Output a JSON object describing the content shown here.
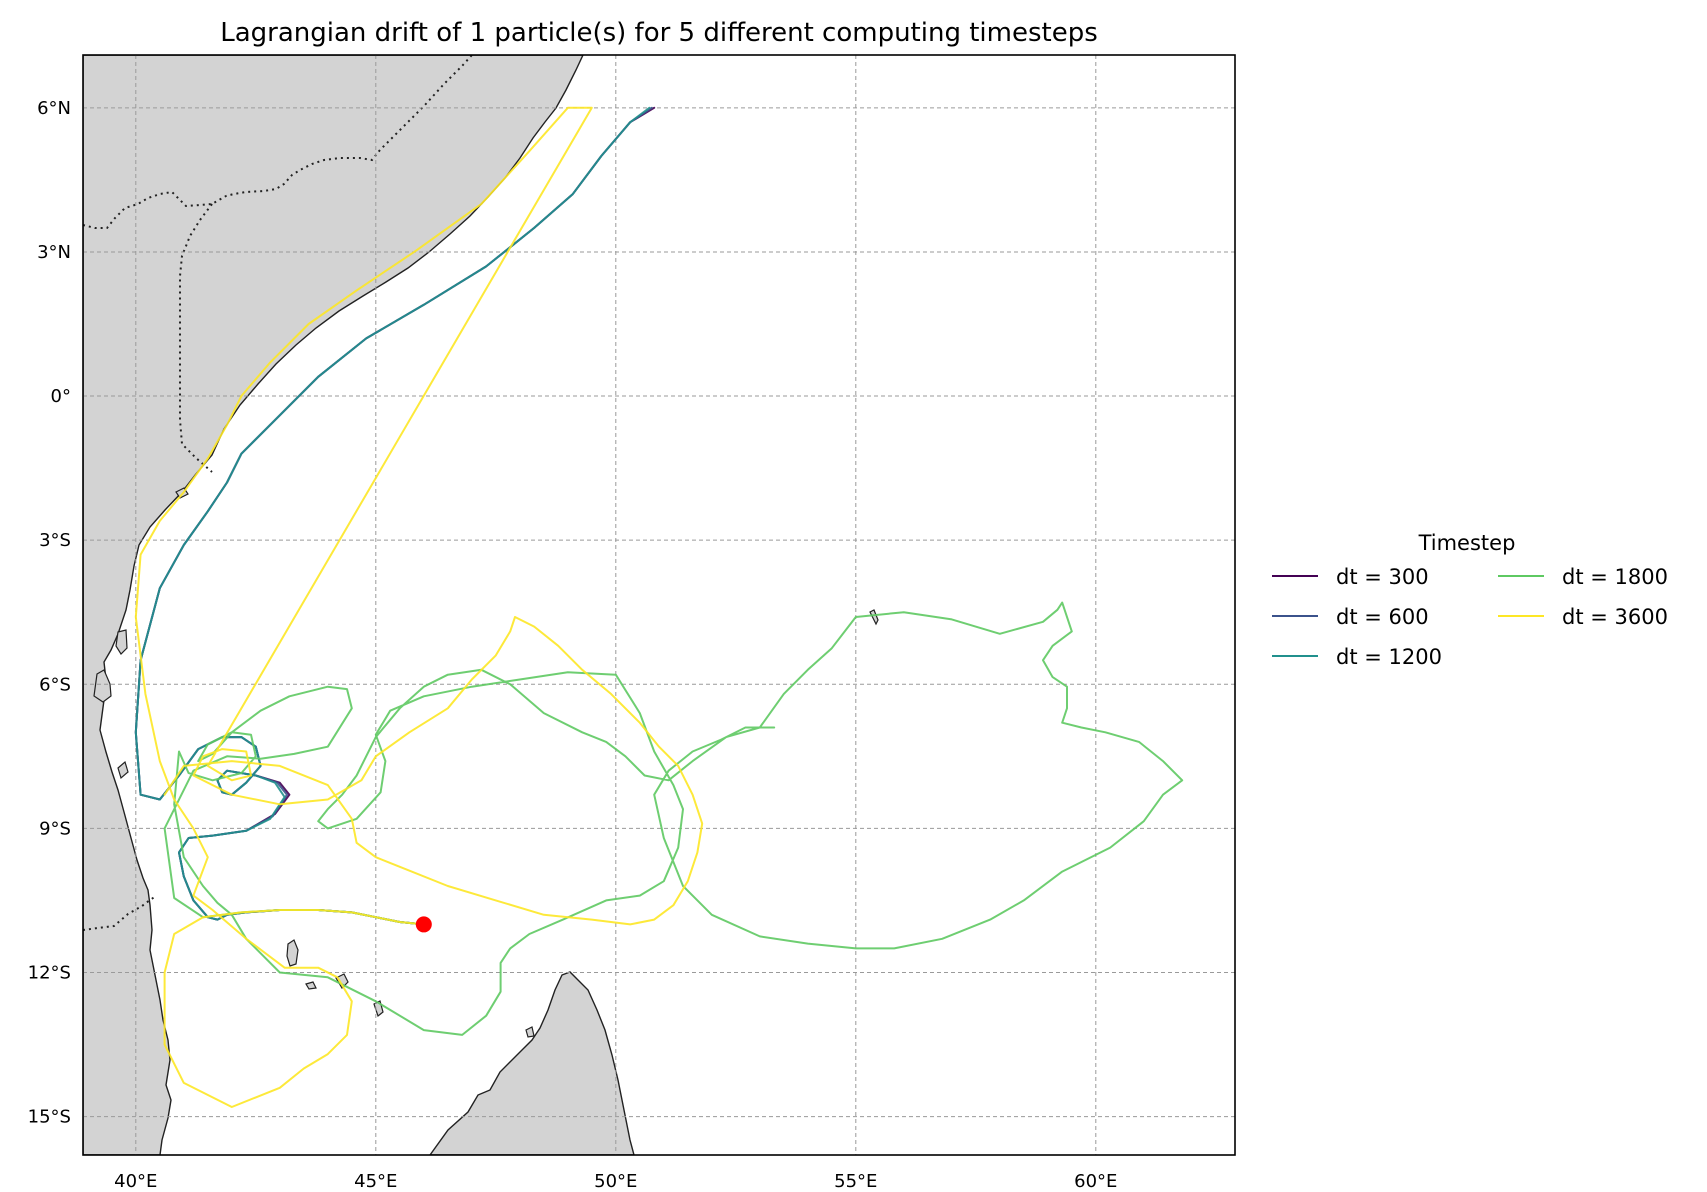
{
  "chart_data": {
    "type": "line",
    "title": "Lagrangian drift of 1 particle(s) for 5 different computing timesteps",
    "xlim": [
      38.9,
      62.9
    ],
    "ylim": [
      -15.8,
      7.1
    ],
    "x_ticks": [
      {
        "value": 40,
        "label": "40°E"
      },
      {
        "value": 45,
        "label": "45°E"
      },
      {
        "value": 50,
        "label": "50°E"
      },
      {
        "value": 55,
        "label": "55°E"
      },
      {
        "value": 60,
        "label": "60°E"
      }
    ],
    "y_ticks": [
      {
        "value": 6,
        "label": "6°N"
      },
      {
        "value": 3,
        "label": "3°N"
      },
      {
        "value": 0,
        "label": "0°"
      },
      {
        "value": -3,
        "label": "3°S"
      },
      {
        "value": -6,
        "label": "6°S"
      },
      {
        "value": -9,
        "label": "9°S"
      },
      {
        "value": -12,
        "label": "12°S"
      },
      {
        "value": -15,
        "label": "15°S"
      }
    ],
    "grid": true,
    "legend": {
      "title": "Timestep",
      "position": "right",
      "columns": 2
    },
    "release_point": {
      "lon": 46.0,
      "lat": -11.0,
      "color": "#ff0000"
    },
    "land_color": "#d3d3d3",
    "series": [
      {
        "name": "dt = 300",
        "color": "#440154",
        "lon": [
          46.0,
          45.5,
          45.0,
          44.5,
          43.8,
          43.0,
          42.3,
          41.9,
          41.7,
          41.5,
          41.2,
          41.0,
          40.9,
          41.1,
          41.6,
          42.3,
          42.9,
          43.2,
          43.0,
          42.5,
          41.9,
          41.7,
          41.8,
          42.0,
          42.3,
          42.6,
          42.5,
          42.2,
          41.8,
          41.3,
          40.9,
          40.5,
          40.1,
          40.0,
          40.1,
          40.5,
          41.0,
          41.5,
          41.9,
          42.2,
          42.9,
          43.8,
          44.8,
          46.0,
          47.3,
          48.3,
          49.1,
          49.7,
          50.3,
          50.8
        ],
        "lat": [
          -11.0,
          -10.95,
          -10.85,
          -10.75,
          -10.7,
          -10.7,
          -10.75,
          -10.8,
          -10.9,
          -10.85,
          -10.5,
          -10.0,
          -9.5,
          -9.2,
          -9.15,
          -9.05,
          -8.7,
          -8.3,
          -8.05,
          -7.9,
          -7.8,
          -8.0,
          -8.25,
          -8.3,
          -8.05,
          -7.7,
          -7.3,
          -7.1,
          -7.1,
          -7.35,
          -7.9,
          -8.4,
          -8.3,
          -7.0,
          -5.5,
          -4.0,
          -3.1,
          -2.4,
          -1.8,
          -1.2,
          -0.5,
          0.4,
          1.2,
          1.9,
          2.7,
          3.5,
          4.2,
          5.0,
          5.7,
          6.0
        ]
      },
      {
        "name": "dt = 600",
        "color": "#3b528b",
        "lon": [
          46.0,
          45.5,
          45.0,
          44.5,
          43.8,
          43.0,
          42.3,
          41.9,
          41.7,
          41.5,
          41.2,
          41.0,
          40.9,
          41.1,
          41.6,
          42.3,
          42.85,
          43.15,
          42.95,
          42.5,
          41.9,
          41.7,
          41.8,
          42.0,
          42.3,
          42.6,
          42.5,
          42.2,
          41.8,
          41.3,
          40.9,
          40.5,
          40.1,
          40.0,
          40.1,
          40.5,
          41.0,
          41.5,
          41.9,
          42.2,
          42.9,
          43.8,
          44.8,
          46.0,
          47.3,
          48.3,
          49.1,
          49.7,
          50.3,
          50.75
        ],
        "lat": [
          -11.0,
          -10.95,
          -10.85,
          -10.75,
          -10.7,
          -10.7,
          -10.75,
          -10.8,
          -10.9,
          -10.85,
          -10.5,
          -10.0,
          -9.5,
          -9.2,
          -9.15,
          -9.05,
          -8.75,
          -8.3,
          -8.05,
          -7.9,
          -7.8,
          -8.0,
          -8.25,
          -8.3,
          -8.05,
          -7.7,
          -7.3,
          -7.1,
          -7.1,
          -7.35,
          -7.9,
          -8.4,
          -8.3,
          -7.0,
          -5.5,
          -4.0,
          -3.1,
          -2.4,
          -1.8,
          -1.2,
          -0.5,
          0.4,
          1.2,
          1.9,
          2.7,
          3.5,
          4.2,
          5.0,
          5.7,
          6.0
        ]
      },
      {
        "name": "dt = 1200",
        "color": "#21908d",
        "lon": [
          46.0,
          45.5,
          45.0,
          44.5,
          43.8,
          43.0,
          42.3,
          41.9,
          41.7,
          41.5,
          41.2,
          41.0,
          40.9,
          41.1,
          41.6,
          42.3,
          42.8,
          43.1,
          42.9,
          42.5,
          41.9,
          41.7,
          41.8,
          42.0,
          42.3,
          42.6,
          42.5,
          42.2,
          41.8,
          41.3,
          40.9,
          40.5,
          40.1,
          40.0,
          40.1,
          40.5,
          41.0,
          41.5,
          41.9,
          42.2,
          42.9,
          43.8,
          44.8,
          46.0,
          47.3,
          48.3,
          49.1,
          49.7,
          50.3,
          50.7
        ],
        "lat": [
          -11.0,
          -10.95,
          -10.85,
          -10.75,
          -10.7,
          -10.7,
          -10.75,
          -10.8,
          -10.9,
          -10.85,
          -10.5,
          -10.0,
          -9.5,
          -9.2,
          -9.15,
          -9.05,
          -8.8,
          -8.35,
          -8.05,
          -7.9,
          -7.8,
          -8.0,
          -8.25,
          -8.3,
          -8.05,
          -7.7,
          -7.3,
          -7.1,
          -7.1,
          -7.35,
          -7.9,
          -8.4,
          -8.3,
          -7.0,
          -5.5,
          -4.0,
          -3.1,
          -2.4,
          -1.8,
          -1.2,
          -0.5,
          0.4,
          1.2,
          1.9,
          2.7,
          3.5,
          4.2,
          5.0,
          5.7,
          6.0
        ]
      },
      {
        "name": "dt = 1800",
        "color": "#5ec962",
        "lon": [
          46.0,
          45.5,
          45.0,
          44.5,
          43.8,
          43.0,
          42.2,
          41.4,
          40.8,
          40.6,
          41.2,
          41.9,
          42.6,
          43.3,
          44.0,
          44.5,
          44.4,
          44.0,
          43.2,
          42.6,
          42.0,
          41.6,
          41.3,
          41.5,
          42.0,
          42.4,
          42.5,
          42.2,
          41.6,
          41.1,
          40.9,
          40.8,
          41.0,
          41.4,
          41.7,
          42.0,
          42.3,
          43.0,
          44.0,
          45.0,
          46.0,
          46.8,
          47.3,
          47.6,
          47.6,
          47.8,
          48.2,
          48.9,
          49.8,
          50.5,
          51.0,
          51.3,
          51.4,
          51.2,
          50.8,
          50.5,
          50.0,
          49.0,
          48.0,
          47.0,
          46.0,
          45.3,
          45.0,
          45.2,
          45.1,
          44.6,
          44.0,
          43.8,
          44.0,
          44.3,
          44.6,
          45.0,
          45.5,
          46.0,
          46.5,
          47.2,
          47.8,
          48.5,
          49.3,
          49.8,
          50.2,
          50.6,
          51.1,
          51.6,
          52.3,
          53.0,
          53.5,
          54.0,
          54.5,
          55.0,
          56.0,
          57.0,
          58.0,
          58.9,
          59.2,
          59.3,
          59.5,
          59.1,
          58.9,
          59.1,
          59.4,
          59.4,
          59.3,
          59.7,
          60.2,
          60.9,
          61.4,
          61.8,
          61.4,
          61.0,
          60.3,
          59.3,
          58.5,
          57.8,
          56.8,
          55.8,
          55.0,
          54.0,
          53.0,
          52.0,
          51.4,
          51.0,
          50.8,
          51.1,
          51.6,
          52.2,
          52.7,
          53.3
        ],
        "lat": [
          -11.0,
          -10.95,
          -10.85,
          -10.75,
          -10.7,
          -10.7,
          -10.75,
          -10.85,
          -10.45,
          -9.0,
          -7.8,
          -7.5,
          -7.55,
          -7.45,
          -7.3,
          -6.5,
          -6.1,
          -6.05,
          -6.25,
          -6.55,
          -7.0,
          -7.45,
          -7.6,
          -7.25,
          -7.0,
          -7.05,
          -7.5,
          -7.85,
          -8.0,
          -7.85,
          -7.4,
          -8.5,
          -9.6,
          -10.2,
          -10.55,
          -10.8,
          -11.3,
          -12.0,
          -12.1,
          -12.6,
          -13.2,
          -13.3,
          -12.9,
          -12.4,
          -11.8,
          -11.5,
          -11.2,
          -10.9,
          -10.5,
          -10.4,
          -10.1,
          -9.4,
          -8.6,
          -8.1,
          -7.4,
          -6.6,
          -5.8,
          -5.75,
          -5.9,
          -6.05,
          -6.25,
          -6.55,
          -7.05,
          -7.6,
          -8.25,
          -8.8,
          -9.0,
          -8.85,
          -8.6,
          -8.3,
          -7.9,
          -7.1,
          -6.5,
          -6.05,
          -5.8,
          -5.7,
          -6.0,
          -6.6,
          -7.0,
          -7.2,
          -7.5,
          -7.9,
          -8.0,
          -7.6,
          -7.1,
          -6.9,
          -6.2,
          -5.7,
          -5.25,
          -4.6,
          -4.5,
          -4.65,
          -4.95,
          -4.7,
          -4.45,
          -4.3,
          -4.9,
          -5.2,
          -5.5,
          -5.85,
          -6.05,
          -6.5,
          -6.8,
          -6.9,
          -7.0,
          -7.2,
          -7.6,
          -8.0,
          -8.3,
          -8.85,
          -9.4,
          -9.9,
          -10.5,
          -10.9,
          -11.3,
          -11.5,
          -11.5,
          -11.4,
          -11.25,
          -10.8,
          -10.2,
          -9.2,
          -8.3,
          -7.8,
          -7.4,
          -7.15,
          -6.9,
          -6.9
        ]
      },
      {
        "name": "dt = 3600",
        "color": "#fde725",
        "lon": [
          46.0,
          45.5,
          45.0,
          44.5,
          43.8,
          43.0,
          42.2,
          41.4,
          40.8,
          40.6,
          40.6,
          41.0,
          42.0,
          42.5,
          43.0,
          43.5,
          44.0,
          44.4,
          44.5,
          44.2,
          43.8,
          43.1,
          42.3,
          41.6,
          41.2,
          41.5,
          41.2,
          40.8,
          40.5,
          40.2,
          40.0,
          40.1,
          40.5,
          41.0,
          41.5,
          41.9,
          42.2,
          42.8,
          43.6,
          44.6,
          45.8,
          47.2,
          48.2,
          49.0,
          49.5,
          41.5,
          42.0,
          42.4,
          42.3,
          41.8,
          41.4,
          41.2,
          42.0,
          43.0,
          44.0,
          44.7,
          45.0,
          45.7,
          46.5,
          47.0,
          47.5,
          47.8,
          47.9,
          48.3,
          48.8,
          49.3,
          49.9,
          50.5,
          50.9,
          51.3,
          51.6,
          51.8,
          51.7,
          51.5,
          51.2,
          50.8,
          50.3,
          49.5,
          48.5,
          47.5,
          46.5,
          45.5,
          45.0,
          44.6,
          44.5,
          44.0,
          43.0,
          42.0,
          41.0,
          40.6
        ],
        "lat": [
          -11.0,
          -10.95,
          -10.85,
          -10.75,
          -10.7,
          -10.7,
          -10.75,
          -10.85,
          -11.2,
          -12.0,
          -13.5,
          -14.3,
          -14.8,
          -14.6,
          -14.4,
          -14.0,
          -13.7,
          -13.3,
          -12.6,
          -12.1,
          -11.9,
          -11.9,
          -11.3,
          -10.7,
          -10.4,
          -9.6,
          -9.0,
          -8.4,
          -7.6,
          -6.2,
          -4.6,
          -3.3,
          -2.6,
          -2.0,
          -1.3,
          -0.6,
          0.0,
          0.7,
          1.5,
          2.2,
          3.0,
          4.0,
          5.1,
          6.0,
          6.0,
          -7.7,
          -8.0,
          -7.9,
          -7.4,
          -7.35,
          -7.5,
          -7.9,
          -8.3,
          -8.5,
          -8.4,
          -8.0,
          -7.5,
          -7.0,
          -6.5,
          -5.9,
          -5.4,
          -4.9,
          -4.6,
          -4.8,
          -5.2,
          -5.7,
          -6.2,
          -6.8,
          -7.3,
          -7.7,
          -8.3,
          -8.9,
          -9.5,
          -10.1,
          -10.6,
          -10.9,
          -11.0,
          -10.9,
          -10.8,
          -10.5,
          -10.2,
          -9.8,
          -9.6,
          -9.3,
          -8.8,
          -8.1,
          -7.7,
          -7.6,
          -7.7,
          -8.3
        ]
      }
    ]
  }
}
